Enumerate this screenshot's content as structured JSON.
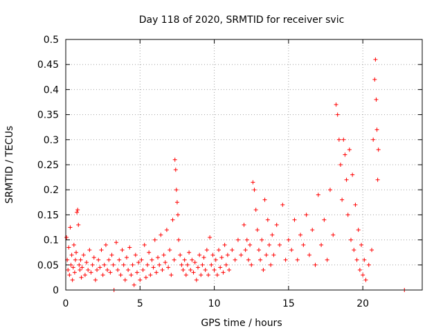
{
  "chart_data": {
    "type": "scatter",
    "title": "Day 118 of 2020, SRMTID for receiver svic",
    "xlabel": "GPS time / hours",
    "ylabel": "SRMTID / TECUs",
    "xlim": [
      0,
      24
    ],
    "ylim": [
      0,
      0.5
    ],
    "x_ticks": [
      0,
      5,
      10,
      15,
      20
    ],
    "x_tick_labels": [
      "0",
      "5",
      "10",
      "15",
      "20"
    ],
    "y_ticks": [
      0,
      0.05,
      0.1,
      0.15,
      0.2,
      0.25,
      0.3,
      0.35,
      0.4,
      0.45,
      0.5
    ],
    "y_tick_labels": [
      "0",
      "0.05",
      "0.1",
      "0.15",
      "0.2",
      "0.25",
      "0.3",
      "0.35",
      "0.4",
      "0.45",
      "0.5"
    ],
    "grid": true,
    "marker": "+",
    "series": [
      {
        "name": "SRMTID",
        "color": "#ff0000",
        "points": [
          [
            0.05,
            0.105
          ],
          [
            0.1,
            0.06
          ],
          [
            0.15,
            0.04
          ],
          [
            0.2,
            0.085
          ],
          [
            0.25,
            0.03
          ],
          [
            0.3,
            0.125
          ],
          [
            0.35,
            0.05
          ],
          [
            0.4,
            0.07
          ],
          [
            0.45,
            0.02
          ],
          [
            0.5,
            0.045
          ],
          [
            0.55,
            0.09
          ],
          [
            0.6,
            0.035
          ],
          [
            0.65,
            0.06
          ],
          [
            0.7,
            0.075
          ],
          [
            0.75,
            0.155
          ],
          [
            0.8,
            0.16
          ],
          [
            0.85,
            0.13
          ],
          [
            0.9,
            0.05
          ],
          [
            0.95,
            0.04
          ],
          [
            1.0,
            0.06
          ],
          [
            1.05,
            0.025
          ],
          [
            1.1,
            0.045
          ],
          [
            1.2,
            0.07
          ],
          [
            1.3,
            0.03
          ],
          [
            1.4,
            0.055
          ],
          [
            1.5,
            0.04
          ],
          [
            1.6,
            0.08
          ],
          [
            1.7,
            0.035
          ],
          [
            1.8,
            0.05
          ],
          [
            1.9,
            0.065
          ],
          [
            2.0,
            0.02
          ],
          [
            2.1,
            0.04
          ],
          [
            2.2,
            0.06
          ],
          [
            2.3,
            0.045
          ],
          [
            2.4,
            0.08
          ],
          [
            2.5,
            0.03
          ],
          [
            2.6,
            0.05
          ],
          [
            2.7,
            0.09
          ],
          [
            2.8,
            0.04
          ],
          [
            2.9,
            0.06
          ],
          [
            3.0,
            0.035
          ],
          [
            3.1,
            0.07
          ],
          [
            3.2,
            0.05
          ],
          [
            3.25,
            0.0
          ],
          [
            3.4,
            0.095
          ],
          [
            3.5,
            0.04
          ],
          [
            3.6,
            0.06
          ],
          [
            3.7,
            0.03
          ],
          [
            3.8,
            0.08
          ],
          [
            3.9,
            0.05
          ],
          [
            4.0,
            0.02
          ],
          [
            4.1,
            0.065
          ],
          [
            4.2,
            0.04
          ],
          [
            4.3,
            0.085
          ],
          [
            4.4,
            0.03
          ],
          [
            4.5,
            0.05
          ],
          [
            4.6,
            0.01
          ],
          [
            4.7,
            0.07
          ],
          [
            4.8,
            0.035
          ],
          [
            4.9,
            0.055
          ],
          [
            5.0,
            0.02
          ],
          [
            5.1,
            0.06
          ],
          [
            5.2,
            0.04
          ],
          [
            5.3,
            0.09
          ],
          [
            5.4,
            0.025
          ],
          [
            5.5,
            0.05
          ],
          [
            5.6,
            0.075
          ],
          [
            5.7,
            0.03
          ],
          [
            5.8,
            0.06
          ],
          [
            5.9,
            0.045
          ],
          [
            6.0,
            0.1
          ],
          [
            6.1,
            0.035
          ],
          [
            6.2,
            0.065
          ],
          [
            6.3,
            0.05
          ],
          [
            6.4,
            0.11
          ],
          [
            6.5,
            0.04
          ],
          [
            6.6,
            0.07
          ],
          [
            6.7,
            0.055
          ],
          [
            6.8,
            0.12
          ],
          [
            6.9,
            0.045
          ],
          [
            7.0,
            0.08
          ],
          [
            7.1,
            0.03
          ],
          [
            7.2,
            0.14
          ],
          [
            7.3,
            0.06
          ],
          [
            7.35,
            0.26
          ],
          [
            7.4,
            0.24
          ],
          [
            7.45,
            0.2
          ],
          [
            7.5,
            0.175
          ],
          [
            7.55,
            0.15
          ],
          [
            7.6,
            0.1
          ],
          [
            7.7,
            0.07
          ],
          [
            7.8,
            0.05
          ],
          [
            7.9,
            0.04
          ],
          [
            8.0,
            0.06
          ],
          [
            8.1,
            0.03
          ],
          [
            8.2,
            0.05
          ],
          [
            8.3,
            0.075
          ],
          [
            8.4,
            0.04
          ],
          [
            8.5,
            0.06
          ],
          [
            8.6,
            0.035
          ],
          [
            8.7,
            0.055
          ],
          [
            8.8,
            0.02
          ],
          [
            8.9,
            0.045
          ],
          [
            9.0,
            0.07
          ],
          [
            9.1,
            0.03
          ],
          [
            9.2,
            0.05
          ],
          [
            9.3,
            0.065
          ],
          [
            9.4,
            0.04
          ],
          [
            9.5,
            0.08
          ],
          [
            9.6,
            0.03
          ],
          [
            9.7,
            0.105
          ],
          [
            9.8,
            0.05
          ],
          [
            9.9,
            0.07
          ],
          [
            10.0,
            0.04
          ],
          [
            10.1,
            0.06
          ],
          [
            10.2,
            0.03
          ],
          [
            10.3,
            0.08
          ],
          [
            10.4,
            0.045
          ],
          [
            10.5,
            0.065
          ],
          [
            10.6,
            0.035
          ],
          [
            10.7,
            0.09
          ],
          [
            10.8,
            0.05
          ],
          [
            10.9,
            0.07
          ],
          [
            11.0,
            0.04
          ],
          [
            11.2,
            0.08
          ],
          [
            11.4,
            0.06
          ],
          [
            11.6,
            0.1
          ],
          [
            11.8,
            0.07
          ],
          [
            12.0,
            0.13
          ],
          [
            12.1,
            0.08
          ],
          [
            12.2,
            0.1
          ],
          [
            12.3,
            0.06
          ],
          [
            12.4,
            0.09
          ],
          [
            12.5,
            0.05
          ],
          [
            12.6,
            0.215
          ],
          [
            12.7,
            0.2
          ],
          [
            12.8,
            0.16
          ],
          [
            12.9,
            0.12
          ],
          [
            13.0,
            0.08
          ],
          [
            13.1,
            0.06
          ],
          [
            13.2,
            0.1
          ],
          [
            13.3,
            0.04
          ],
          [
            13.4,
            0.18
          ],
          [
            13.5,
            0.07
          ],
          [
            13.6,
            0.14
          ],
          [
            13.7,
            0.09
          ],
          [
            13.8,
            0.05
          ],
          [
            13.9,
            0.11
          ],
          [
            14.0,
            0.07
          ],
          [
            14.2,
            0.13
          ],
          [
            14.4,
            0.09
          ],
          [
            14.6,
            0.17
          ],
          [
            14.8,
            0.06
          ],
          [
            15.0,
            0.1
          ],
          [
            15.2,
            0.08
          ],
          [
            15.4,
            0.14
          ],
          [
            15.6,
            0.06
          ],
          [
            15.8,
            0.11
          ],
          [
            16.0,
            0.09
          ],
          [
            16.2,
            0.15
          ],
          [
            16.4,
            0.07
          ],
          [
            16.6,
            0.12
          ],
          [
            16.8,
            0.05
          ],
          [
            17.0,
            0.19
          ],
          [
            17.2,
            0.09
          ],
          [
            17.4,
            0.14
          ],
          [
            17.6,
            0.06
          ],
          [
            17.8,
            0.2
          ],
          [
            18.0,
            0.11
          ],
          [
            18.2,
            0.37
          ],
          [
            18.3,
            0.35
          ],
          [
            18.4,
            0.3
          ],
          [
            18.5,
            0.25
          ],
          [
            18.6,
            0.18
          ],
          [
            18.7,
            0.3
          ],
          [
            18.8,
            0.27
          ],
          [
            18.9,
            0.22
          ],
          [
            19.0,
            0.15
          ],
          [
            19.1,
            0.28
          ],
          [
            19.2,
            0.1
          ],
          [
            19.3,
            0.23
          ],
          [
            19.4,
            0.08
          ],
          [
            19.5,
            0.17
          ],
          [
            19.6,
            0.06
          ],
          [
            19.7,
            0.12
          ],
          [
            19.8,
            0.04
          ],
          [
            19.9,
            0.09
          ],
          [
            20.0,
            0.03
          ],
          [
            20.1,
            0.06
          ],
          [
            20.2,
            0.02
          ],
          [
            20.4,
            0.05
          ],
          [
            20.6,
            0.08
          ],
          [
            20.7,
            0.3
          ],
          [
            20.8,
            0.42
          ],
          [
            20.85,
            0.46
          ],
          [
            20.9,
            0.38
          ],
          [
            20.95,
            0.32
          ],
          [
            21.0,
            0.22
          ],
          [
            21.05,
            0.28
          ],
          [
            22.8,
            0.0
          ]
        ]
      }
    ]
  }
}
